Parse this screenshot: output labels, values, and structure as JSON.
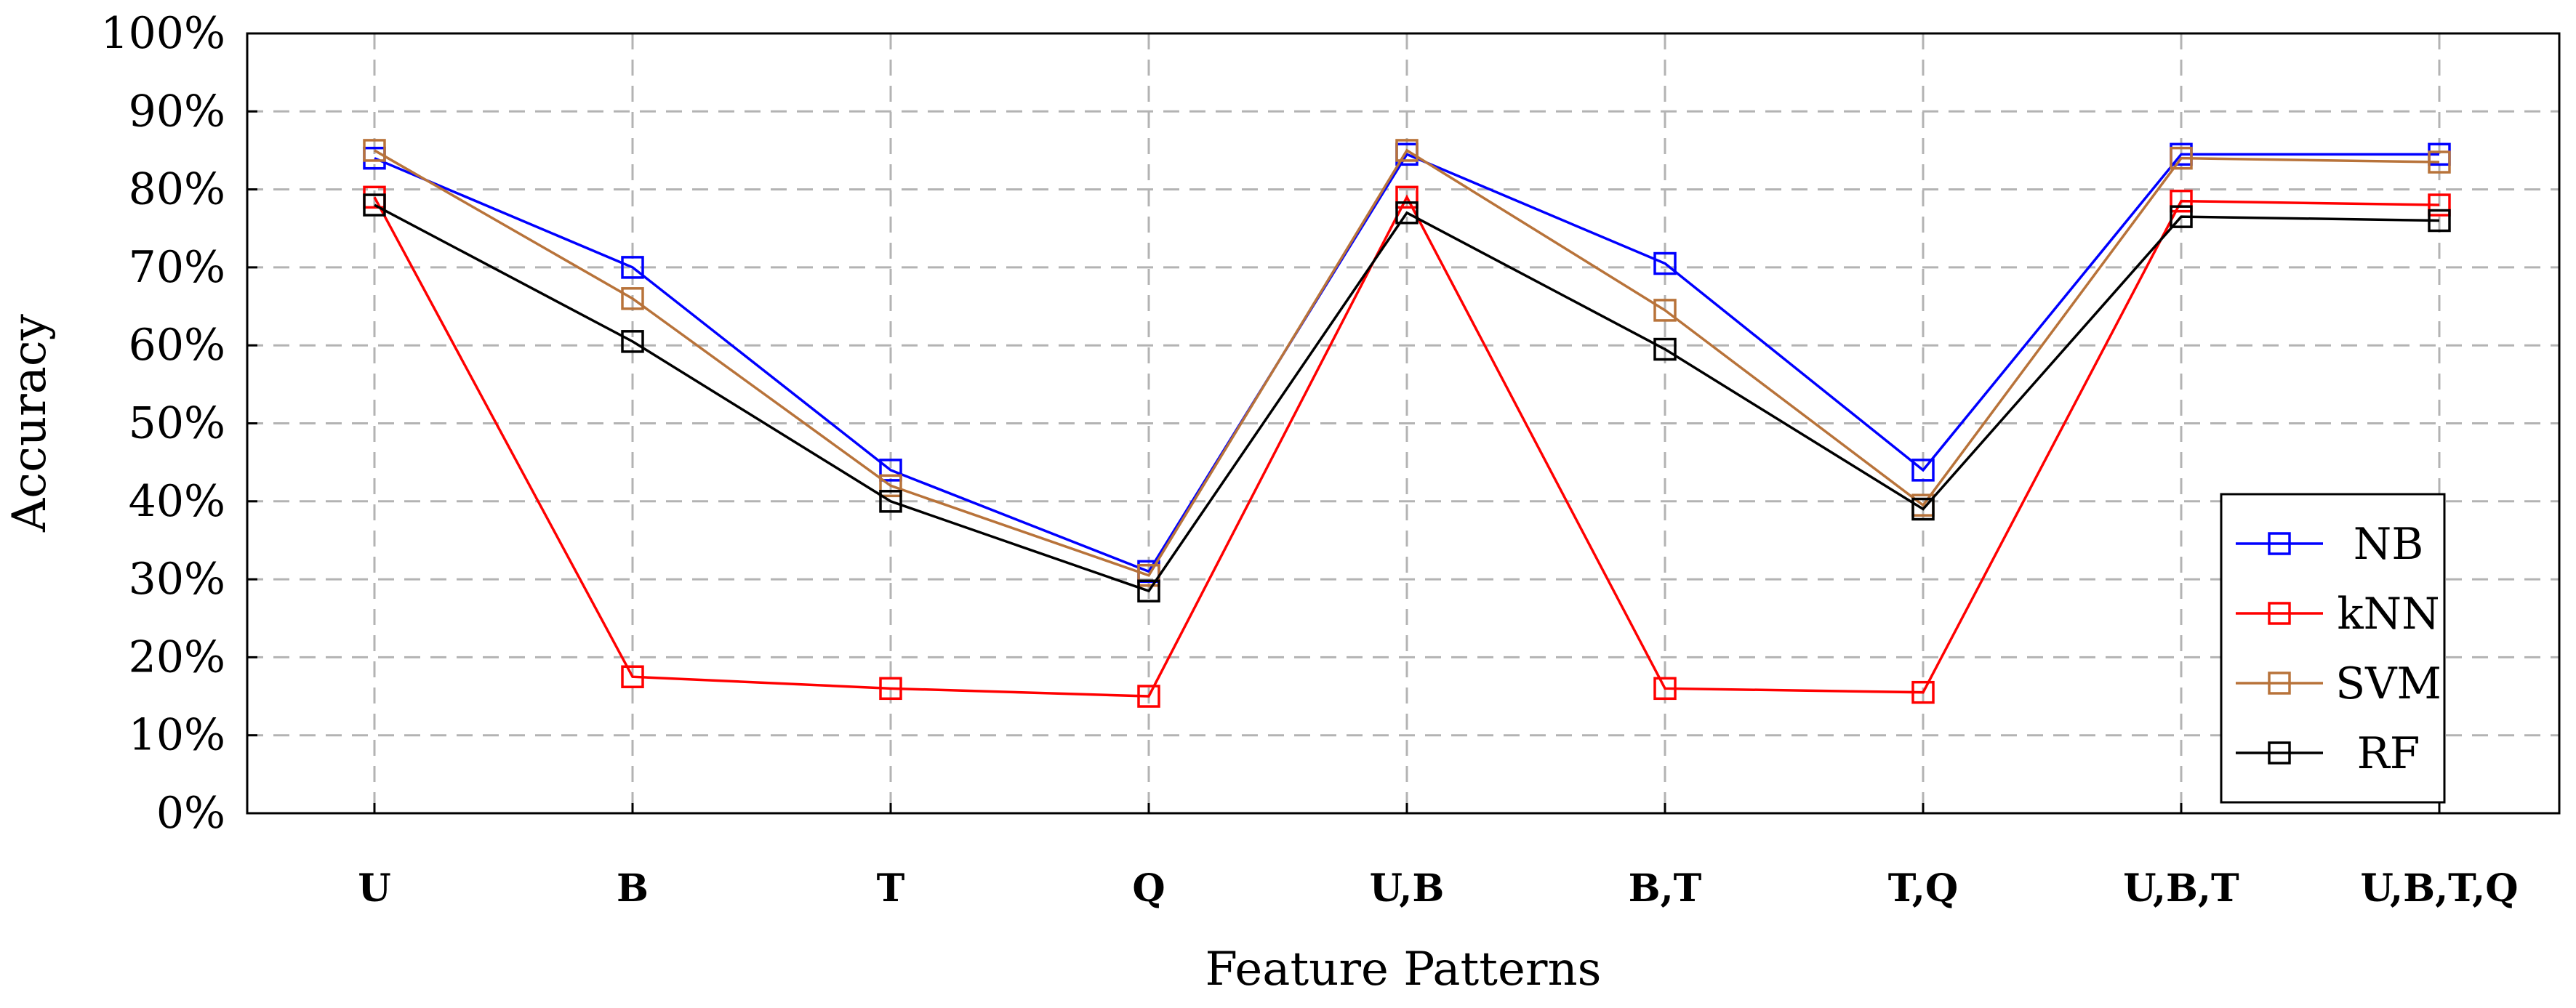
{
  "chart_data": {
    "type": "line",
    "title": "",
    "xlabel": "Feature Patterns",
    "ylabel": "Accuracy",
    "categories": [
      "U",
      "B",
      "T",
      "Q",
      "U,B",
      "B,T",
      "T,Q",
      "U,B,T",
      "U,B,T,Q"
    ],
    "ylim": [
      0,
      100
    ],
    "yticks": [
      "0%",
      "10%",
      "20%",
      "30%",
      "40%",
      "50%",
      "60%",
      "70%",
      "80%",
      "90%",
      "100%"
    ],
    "grid": true,
    "legend_position": "bottom-right",
    "series": [
      {
        "name": "NB",
        "color": "#0000ff",
        "marker": "square",
        "values": [
          84,
          70,
          44,
          31,
          84.5,
          70.5,
          44,
          84.5,
          84.5
        ]
      },
      {
        "name": "kNN",
        "color": "#ff0000",
        "marker": "square",
        "values": [
          79,
          17.5,
          16,
          15,
          79,
          16,
          15.5,
          78.5,
          78
        ]
      },
      {
        "name": "SVM",
        "color": "#b8733a",
        "marker": "square",
        "values": [
          85,
          66,
          42,
          30.5,
          85,
          64.5,
          39.5,
          84,
          83.5
        ]
      },
      {
        "name": "RF",
        "color": "#000000",
        "marker": "square",
        "values": [
          78,
          60.5,
          40,
          28.5,
          77,
          59.5,
          39,
          76.5,
          76
        ]
      }
    ]
  }
}
